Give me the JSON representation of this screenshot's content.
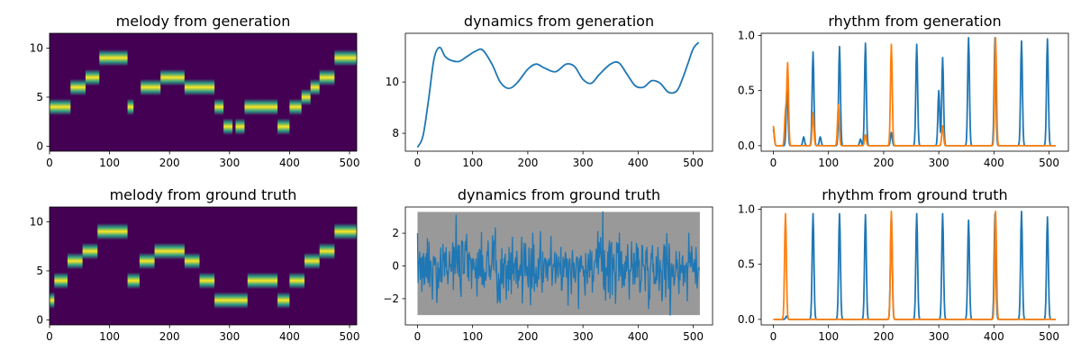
{
  "colors": {
    "series_blue": "#1f77b4",
    "series_orange": "#ff7f0e",
    "heatmap_low": "#440154",
    "heatmap_mid": "#21918c",
    "heatmap_high": "#fde725",
    "band_gray": "#999999"
  },
  "chart_data": [
    {
      "type": "heatmap",
      "title": "melody from generation",
      "xlim": [
        0,
        512
      ],
      "ylim": [
        -0.5,
        11.5
      ],
      "xticks": [
        0,
        100,
        200,
        300,
        400,
        500
      ],
      "yticks": [
        0,
        5,
        10
      ],
      "segments": [
        {
          "x0": 0,
          "x1": 35,
          "pitch": 4
        },
        {
          "x0": 35,
          "x1": 60,
          "pitch": 6
        },
        {
          "x0": 60,
          "x1": 83,
          "pitch": 7
        },
        {
          "x0": 83,
          "x1": 130,
          "pitch": 9
        },
        {
          "x0": 130,
          "x1": 140,
          "pitch": 4
        },
        {
          "x0": 152,
          "x1": 185,
          "pitch": 6
        },
        {
          "x0": 185,
          "x1": 225,
          "pitch": 7
        },
        {
          "x0": 225,
          "x1": 275,
          "pitch": 6
        },
        {
          "x0": 275,
          "x1": 290,
          "pitch": 4
        },
        {
          "x0": 290,
          "x1": 305,
          "pitch": 2
        },
        {
          "x0": 310,
          "x1": 325,
          "pitch": 2
        },
        {
          "x0": 325,
          "x1": 380,
          "pitch": 4
        },
        {
          "x0": 380,
          "x1": 400,
          "pitch": 2
        },
        {
          "x0": 400,
          "x1": 420,
          "pitch": 4
        },
        {
          "x0": 420,
          "x1": 435,
          "pitch": 5
        },
        {
          "x0": 435,
          "x1": 450,
          "pitch": 6
        },
        {
          "x0": 450,
          "x1": 475,
          "pitch": 7
        },
        {
          "x0": 475,
          "x1": 512,
          "pitch": 9
        }
      ]
    },
    {
      "type": "line",
      "title": "dynamics from generation",
      "xlim": [
        -22,
        535
      ],
      "ylim": [
        7.3,
        11.9
      ],
      "xticks": [
        0,
        100,
        200,
        300,
        400,
        500
      ],
      "yticks": [
        8,
        10
      ],
      "series": [
        {
          "color": "series_blue",
          "x": [
            0,
            10,
            20,
            30,
            40,
            50,
            60,
            75,
            90,
            105,
            118,
            135,
            150,
            165,
            180,
            200,
            215,
            230,
            250,
            270,
            285,
            300,
            315,
            330,
            350,
            365,
            380,
            395,
            410,
            425,
            440,
            455,
            470,
            480,
            490,
            500,
            510
          ],
          "y": [
            7.45,
            7.9,
            9.3,
            10.9,
            11.35,
            11.0,
            10.85,
            10.8,
            11.0,
            11.2,
            11.25,
            10.7,
            10.0,
            9.75,
            9.95,
            10.5,
            10.7,
            10.55,
            10.4,
            10.7,
            10.6,
            10.1,
            9.95,
            10.3,
            10.7,
            10.75,
            10.3,
            9.85,
            9.8,
            10.05,
            9.95,
            9.6,
            9.65,
            10.1,
            10.7,
            11.3,
            11.55
          ]
        }
      ]
    },
    {
      "type": "line",
      "title": "rhythm from generation",
      "xlim": [
        -22,
        535
      ],
      "ylim": [
        -0.05,
        1.02
      ],
      "xticks": [
        0,
        100,
        200,
        300,
        400,
        500
      ],
      "yticks": [
        0.0,
        0.5,
        1.0
      ],
      "series": [
        {
          "color": "series_blue",
          "peaks": [
            [
              0,
              0.15
            ],
            [
              25,
              0.55
            ],
            [
              55,
              0.08
            ],
            [
              72,
              0.85
            ],
            [
              85,
              0.08
            ],
            [
              120,
              0.9
            ],
            [
              158,
              0.06
            ],
            [
              167,
              0.93
            ],
            [
              214,
              0.12
            ],
            [
              260,
              0.92
            ],
            [
              300,
              0.5
            ],
            [
              307,
              0.8
            ],
            [
              354,
              0.98
            ],
            [
              402,
              0.98
            ],
            [
              450,
              0.95
            ],
            [
              497,
              0.97
            ]
          ]
        },
        {
          "color": "series_orange",
          "peaks": [
            [
              0,
              0.18
            ],
            [
              22,
              0.3
            ],
            [
              26,
              0.74
            ],
            [
              72,
              0.3
            ],
            [
              118,
              0.37
            ],
            [
              167,
              0.1
            ],
            [
              214,
              0.92
            ],
            [
              307,
              0.18
            ],
            [
              403,
              0.98
            ]
          ]
        }
      ]
    },
    {
      "type": "heatmap",
      "title": "melody from ground truth",
      "xlim": [
        0,
        512
      ],
      "ylim": [
        -0.5,
        11.5
      ],
      "xticks": [
        0,
        100,
        200,
        300,
        400,
        500
      ],
      "yticks": [
        0,
        5,
        10
      ],
      "segments": [
        {
          "x0": 0,
          "x1": 8,
          "pitch": 2
        },
        {
          "x0": 8,
          "x1": 30,
          "pitch": 4
        },
        {
          "x0": 30,
          "x1": 55,
          "pitch": 6
        },
        {
          "x0": 55,
          "x1": 80,
          "pitch": 7
        },
        {
          "x0": 80,
          "x1": 130,
          "pitch": 9
        },
        {
          "x0": 130,
          "x1": 150,
          "pitch": 4
        },
        {
          "x0": 150,
          "x1": 175,
          "pitch": 6
        },
        {
          "x0": 175,
          "x1": 225,
          "pitch": 7
        },
        {
          "x0": 225,
          "x1": 250,
          "pitch": 6
        },
        {
          "x0": 250,
          "x1": 275,
          "pitch": 4
        },
        {
          "x0": 275,
          "x1": 330,
          "pitch": 2
        },
        {
          "x0": 330,
          "x1": 380,
          "pitch": 4
        },
        {
          "x0": 380,
          "x1": 400,
          "pitch": 2
        },
        {
          "x0": 400,
          "x1": 425,
          "pitch": 4
        },
        {
          "x0": 425,
          "x1": 450,
          "pitch": 6
        },
        {
          "x0": 450,
          "x1": 475,
          "pitch": 7
        },
        {
          "x0": 475,
          "x1": 512,
          "pitch": 9
        }
      ]
    },
    {
      "type": "line",
      "title": "dynamics from ground truth",
      "xlim": [
        -22,
        535
      ],
      "ylim": [
        -3.6,
        3.6
      ],
      "xticks": [
        0,
        100,
        200,
        300,
        400,
        500
      ],
      "yticks": [
        -2,
        0,
        2
      ],
      "band": {
        "x0": 0,
        "x1": 512,
        "y0": -3.0,
        "y1": 3.3,
        "color": "band_gray"
      },
      "series": [
        {
          "color": "series_blue",
          "n_points": 512,
          "noise_std": 0.95,
          "spikes": [
            [
              0,
              2.0
            ],
            [
              70,
              3.1
            ],
            [
              336,
              3.3
            ],
            [
              458,
              -3.0
            ]
          ]
        }
      ]
    },
    {
      "type": "line",
      "title": "rhythm from ground truth",
      "xlim": [
        -22,
        535
      ],
      "ylim": [
        -0.05,
        1.02
      ],
      "xticks": [
        0,
        100,
        200,
        300,
        400,
        500
      ],
      "yticks": [
        0.0,
        0.5,
        1.0
      ],
      "series": [
        {
          "color": "series_blue",
          "peaks": [
            [
              24,
              0.03
            ],
            [
              72,
              0.96
            ],
            [
              120,
              0.96
            ],
            [
              167,
              0.95
            ],
            [
              214,
              0.96
            ],
            [
              260,
              0.96
            ],
            [
              307,
              0.96
            ],
            [
              354,
              0.9
            ],
            [
              402,
              0.96
            ],
            [
              450,
              0.98
            ],
            [
              497,
              0.93
            ]
          ]
        },
        {
          "color": "series_orange",
          "peaks": [
            [
              22,
              0.96
            ],
            [
              214,
              0.98
            ],
            [
              403,
              0.98
            ]
          ]
        }
      ]
    }
  ]
}
